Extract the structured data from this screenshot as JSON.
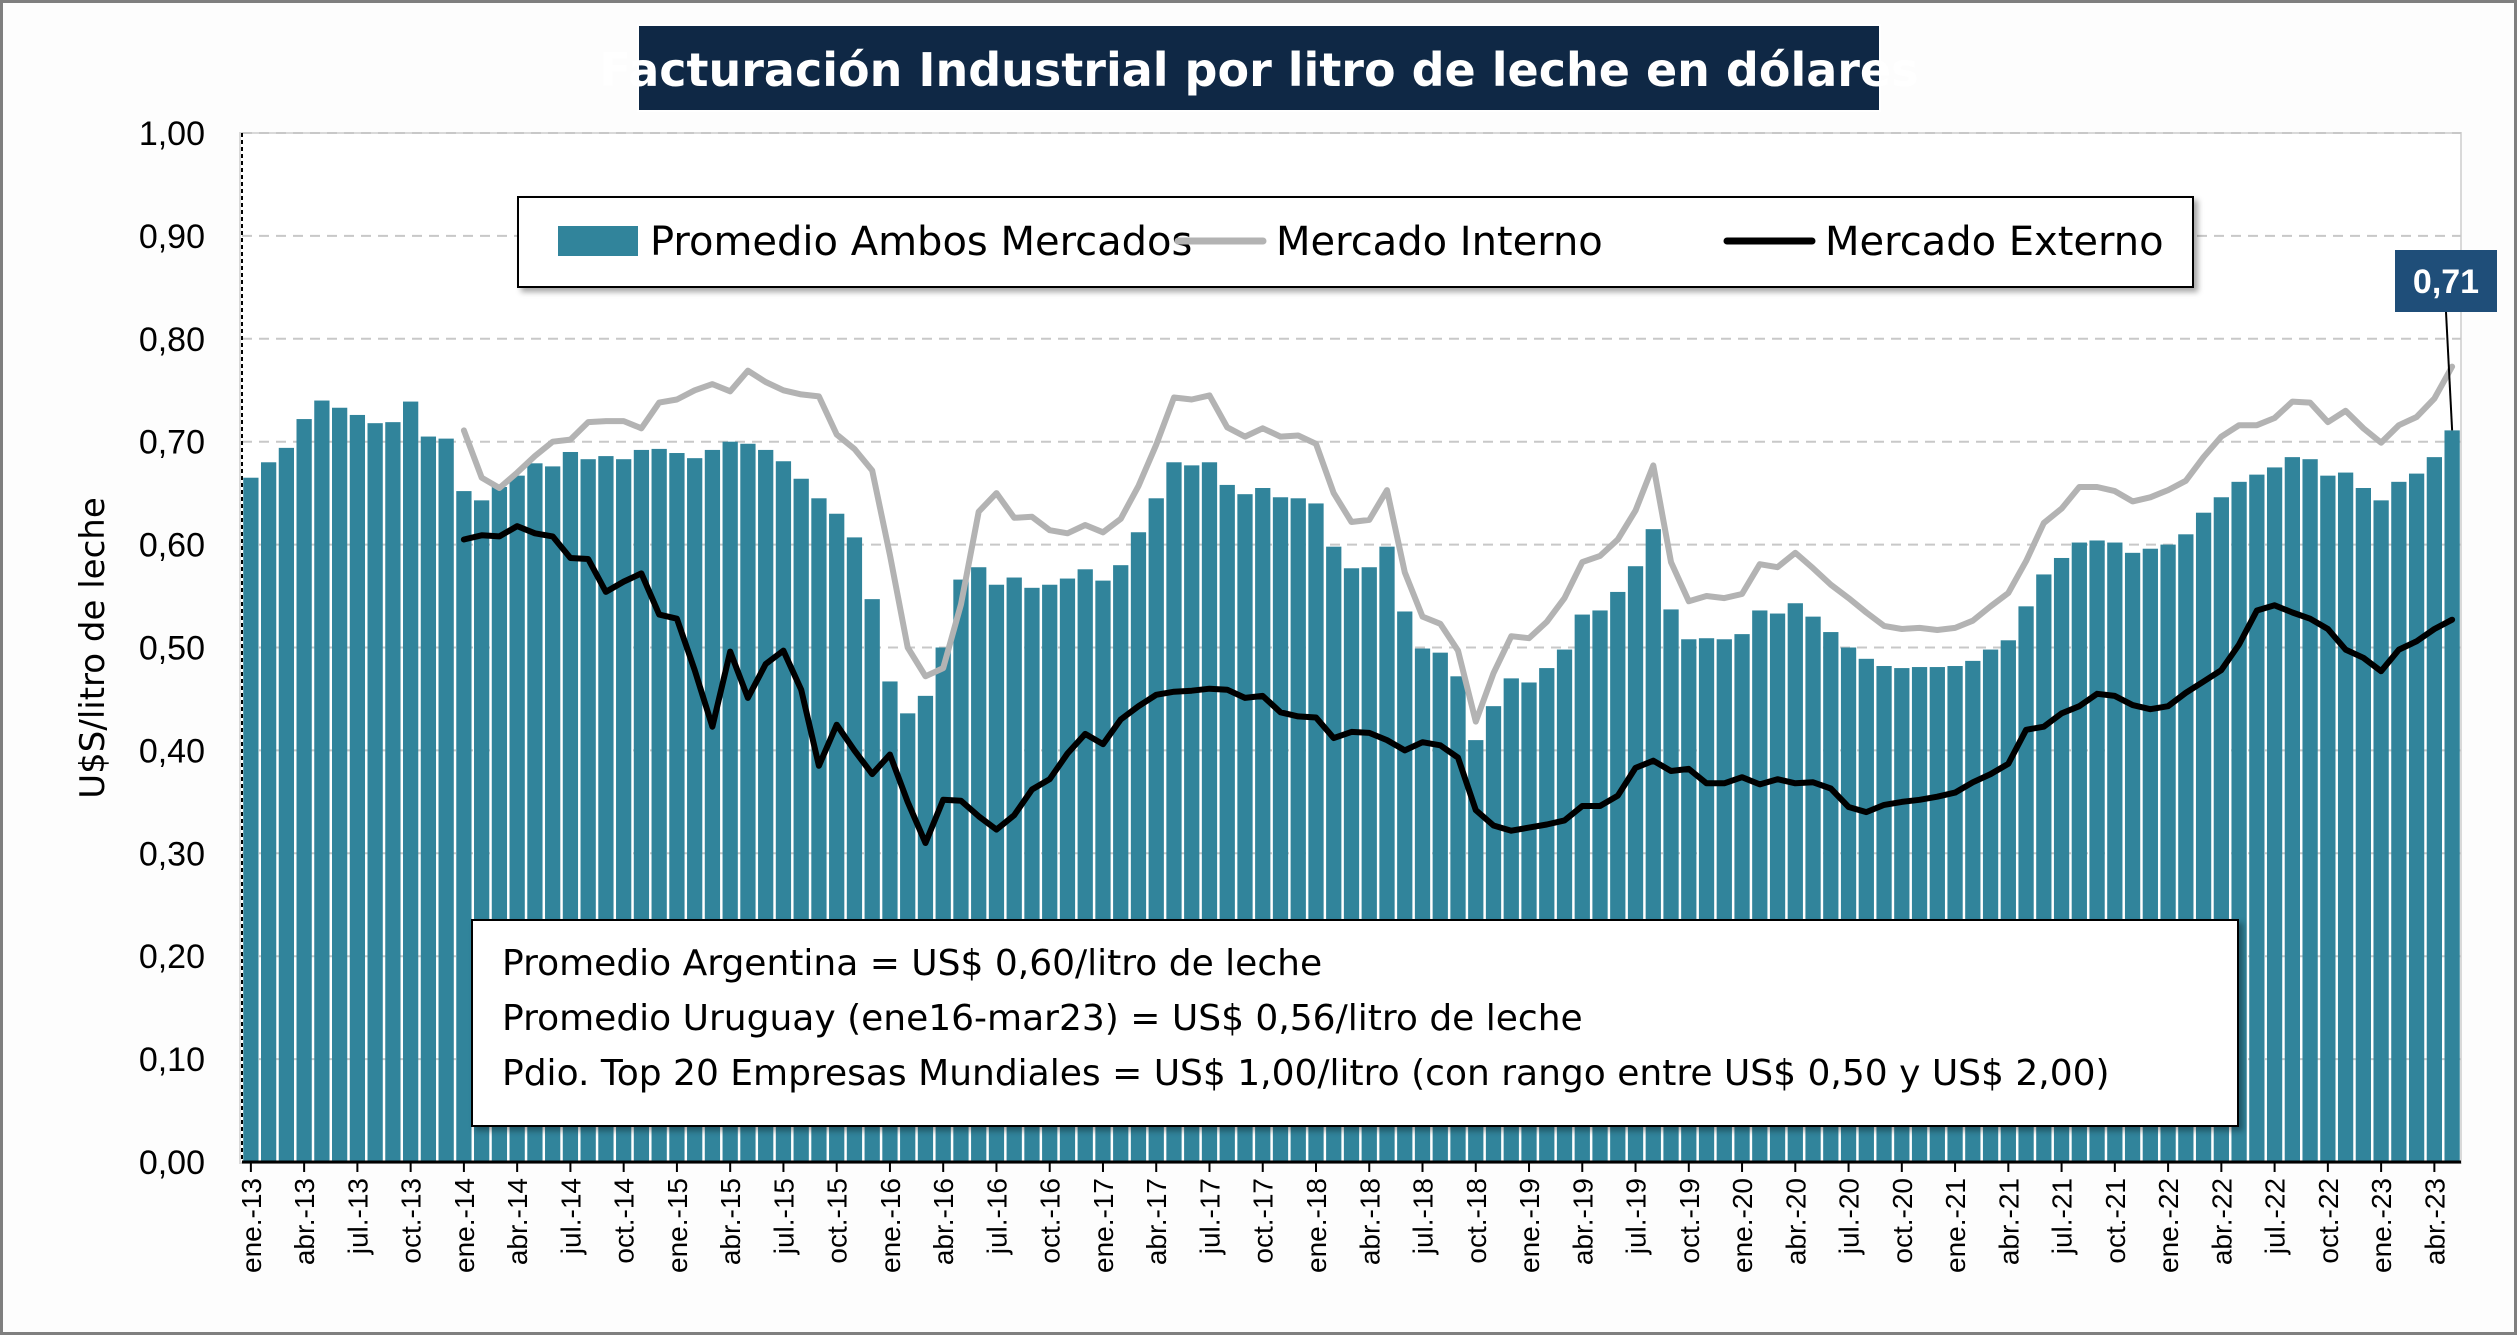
{
  "chart_data": {
    "type": "bar",
    "title": "Facturación Industrial por litro de leche en dólares",
    "ylabel": "U$S/litro de leche",
    "xlabel": "",
    "ylim": [
      0,
      1.0
    ],
    "y_ticks": [
      "0,00",
      "0,10",
      "0,20",
      "0,30",
      "0,40",
      "0,50",
      "0,60",
      "0,70",
      "0,80",
      "0,90",
      "1,00"
    ],
    "grid": "horizontal dashed",
    "legend_placement": "top-center",
    "x_tick_labels": [
      "ene.-13",
      "abr.-13",
      "jul.-13",
      "oct.-13",
      "ene.-14",
      "abr.-14",
      "jul.-14",
      "oct.-14",
      "ene.-15",
      "abr.-15",
      "jul.-15",
      "oct.-15",
      "ene.-16",
      "abr.-16",
      "jul.-16",
      "oct.-16",
      "ene.-17",
      "abr.-17",
      "jul.-17",
      "oct.-17",
      "ene.-18",
      "abr.-18",
      "jul.-18",
      "oct.-18",
      "ene.-19",
      "abr.-19",
      "jul.-19",
      "oct.-19",
      "ene.-20",
      "abr.-20",
      "jul.-20",
      "oct.-20",
      "ene.-21",
      "abr.-21",
      "jul.-21",
      "oct.-21",
      "ene.-22",
      "abr.-22",
      "jul.-22",
      "oct.-22",
      "ene.-23",
      "abr.-23"
    ],
    "series": [
      {
        "name": "Promedio Ambos Mercados",
        "kind": "bar",
        "color": "#31849b",
        "values": [
          0.665,
          0.68,
          0.694,
          0.722,
          0.74,
          0.733,
          0.726,
          0.718,
          0.719,
          0.739,
          0.705,
          0.703,
          0.652,
          0.643,
          0.656,
          0.667,
          0.679,
          0.676,
          0.69,
          0.683,
          0.686,
          0.683,
          0.692,
          0.693,
          0.689,
          0.684,
          0.692,
          0.7,
          0.698,
          0.692,
          0.681,
          0.664,
          0.645,
          0.63,
          0.607,
          0.547,
          0.467,
          0.436,
          0.453,
          0.5,
          0.566,
          0.578,
          0.561,
          0.568,
          0.558,
          0.561,
          0.567,
          0.576,
          0.565,
          0.58,
          0.612,
          0.645,
          0.68,
          0.677,
          0.68,
          0.658,
          0.649,
          0.655,
          0.646,
          0.645,
          0.64,
          0.598,
          0.577,
          0.578,
          0.598,
          0.535,
          0.499,
          0.495,
          0.472,
          0.41,
          0.443,
          0.47,
          0.466,
          0.48,
          0.498,
          0.532,
          0.536,
          0.554,
          0.579,
          0.615,
          0.537,
          0.508,
          0.509,
          0.508,
          0.513,
          0.536,
          0.533,
          0.543,
          0.53,
          0.515,
          0.5,
          0.489,
          0.482,
          0.48,
          0.481,
          0.481,
          0.482,
          0.487,
          0.498,
          0.507,
          0.54,
          0.571,
          0.587,
          0.602,
          0.604,
          0.602,
          0.592,
          0.596,
          0.6,
          0.61,
          0.631,
          0.646,
          0.661,
          0.668,
          0.675,
          0.685,
          0.683,
          0.667,
          0.67,
          0.655,
          0.643,
          0.661,
          0.669,
          0.685,
          0.711
        ]
      },
      {
        "name": "Mercado Interno",
        "kind": "line",
        "color": "#b3b3b3",
        "start_index": 12,
        "values": [
          0.711,
          0.665,
          0.655,
          0.67,
          0.686,
          0.7,
          0.702,
          0.719,
          0.72,
          0.72,
          0.713,
          0.738,
          0.741,
          0.75,
          0.756,
          0.749,
          0.769,
          0.758,
          0.75,
          0.746,
          0.744,
          0.707,
          0.693,
          0.672,
          0.59,
          0.5,
          0.472,
          0.48,
          0.542,
          0.632,
          0.65,
          0.626,
          0.627,
          0.614,
          0.611,
          0.619,
          0.612,
          0.625,
          0.657,
          0.697,
          0.743,
          0.741,
          0.745,
          0.714,
          0.705,
          0.713,
          0.705,
          0.706,
          0.698,
          0.65,
          0.622,
          0.624,
          0.653,
          0.573,
          0.53,
          0.523,
          0.497,
          0.428,
          0.475,
          0.511,
          0.509,
          0.525,
          0.548,
          0.583,
          0.589,
          0.605,
          0.633,
          0.677,
          0.583,
          0.545,
          0.55,
          0.548,
          0.552,
          0.581,
          0.578,
          0.592,
          0.577,
          0.561,
          0.548,
          0.534,
          0.521,
          0.518,
          0.519,
          0.517,
          0.519,
          0.526,
          0.54,
          0.553,
          0.584,
          0.621,
          0.635,
          0.656,
          0.656,
          0.652,
          0.642,
          0.646,
          0.653,
          0.662,
          0.685,
          0.705,
          0.716,
          0.716,
          0.723,
          0.739,
          0.738,
          0.719,
          0.73,
          0.713,
          0.699,
          0.716,
          0.724,
          0.742,
          0.773
        ]
      },
      {
        "name": "Mercado Externo",
        "kind": "line",
        "color": "#000000",
        "start_index": 12,
        "values": [
          0.605,
          0.609,
          0.608,
          0.618,
          0.611,
          0.608,
          0.587,
          0.586,
          0.554,
          0.564,
          0.572,
          0.532,
          0.528,
          0.478,
          0.423,
          0.496,
          0.451,
          0.484,
          0.497,
          0.459,
          0.385,
          0.425,
          0.4,
          0.377,
          0.396,
          0.35,
          0.31,
          0.352,
          0.351,
          0.336,
          0.323,
          0.337,
          0.362,
          0.372,
          0.397,
          0.416,
          0.406,
          0.43,
          0.443,
          0.454,
          0.457,
          0.458,
          0.46,
          0.459,
          0.451,
          0.453,
          0.437,
          0.433,
          0.432,
          0.412,
          0.418,
          0.417,
          0.41,
          0.4,
          0.408,
          0.405,
          0.393,
          0.342,
          0.327,
          0.322,
          0.325,
          0.328,
          0.332,
          0.346,
          0.346,
          0.356,
          0.383,
          0.39,
          0.38,
          0.382,
          0.368,
          0.368,
          0.374,
          0.367,
          0.372,
          0.368,
          0.369,
          0.363,
          0.345,
          0.34,
          0.347,
          0.35,
          0.352,
          0.355,
          0.359,
          0.369,
          0.377,
          0.387,
          0.42,
          0.423,
          0.436,
          0.443,
          0.455,
          0.453,
          0.444,
          0.44,
          0.443,
          0.456,
          0.467,
          0.478,
          0.503,
          0.536,
          0.541,
          0.534,
          0.528,
          0.518,
          0.498,
          0.49,
          0.477,
          0.498,
          0.506,
          0.518,
          0.527
        ]
      }
    ],
    "annotations": {
      "last_value_callout": "0,71",
      "callout_color": "#1f4e79",
      "notes": [
        "Promedio Argentina = US$ 0,60/litro de leche",
        "Promedio Uruguay (ene16-mar23) = US$ 0,56/litro de leche",
        "Pdio. Top 20 Empresas Mundiales = US$ 1,00/litro (con rango entre US$ 0,50 y US$ 2,00)"
      ]
    }
  }
}
